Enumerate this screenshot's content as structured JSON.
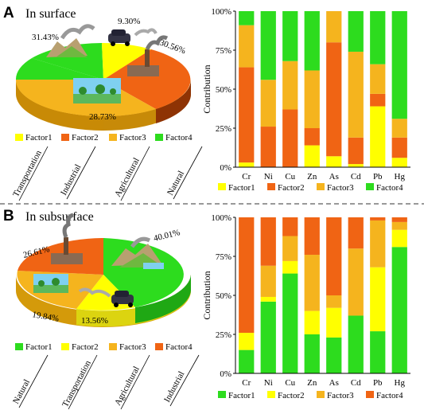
{
  "panels": [
    {
      "letter": "A",
      "title": "In surface",
      "pie": {
        "slices": [
          {
            "label": "9.30%",
            "value": 9.3,
            "factor": "Factor1"
          },
          {
            "label": "30.56%",
            "value": 30.56,
            "factor": "Factor2"
          },
          {
            "label": "28.73%",
            "value": 28.73,
            "factor": "Factor3"
          },
          {
            "label": "31.43%",
            "value": 31.43,
            "factor": "Factor4"
          }
        ],
        "legend": [
          "Factor1",
          "Factor2",
          "Factor3",
          "Factor4"
        ],
        "sources": [
          "Transportation",
          "Industrial",
          "Agricultural",
          "Natural"
        ]
      }
    },
    {
      "letter": "B",
      "title": "In subsurface",
      "pie": {
        "slices": [
          {
            "label": "40.01%",
            "value": 40.01,
            "factor": "Factor1"
          },
          {
            "label": "13.56%",
            "value": 13.56,
            "factor": "Factor2"
          },
          {
            "label": "19.84%",
            "value": 19.84,
            "factor": "Factor3"
          },
          {
            "label": "26.61%",
            "value": 26.61,
            "factor": "Factor4"
          }
        ],
        "legend": [
          "Factor1",
          "Factor2",
          "Factor3",
          "Factor4"
        ],
        "sources": [
          "Natural",
          "Transportation",
          "Agricultural",
          "Industrial"
        ]
      }
    }
  ],
  "colors": {
    "Factor1": "#ffff00",
    "Factor2": "#f06414",
    "Factor3": "#f5b41e",
    "Factor4": "#2ddc1e"
  },
  "chart_data": [
    {
      "type": "bar",
      "stacked": true,
      "ylabel": "Contribution",
      "ylim": [
        0,
        100
      ],
      "yticks": [
        "0%",
        "25%",
        "50%",
        "75%",
        "100%"
      ],
      "categories": [
        "Cr",
        "Ni",
        "Cu",
        "Zn",
        "As",
        "Cd",
        "Pb",
        "Hg"
      ],
      "series": [
        {
          "name": "Factor1",
          "color_key": "Factor1",
          "values": [
            3,
            0,
            0,
            14,
            7,
            2,
            39,
            6
          ]
        },
        {
          "name": "Factor2",
          "color_key": "Factor2",
          "values": [
            61,
            26,
            37,
            11,
            73,
            17,
            8,
            13
          ]
        },
        {
          "name": "Factor3",
          "color_key": "Factor3",
          "values": [
            27,
            30,
            31,
            37,
            20,
            55,
            19,
            12
          ]
        },
        {
          "name": "Factor4",
          "color_key": "Factor4",
          "values": [
            9,
            44,
            32,
            38,
            0,
            26,
            34,
            69
          ]
        }
      ],
      "legend_position": "bottom"
    },
    {
      "type": "bar",
      "stacked": true,
      "ylabel": "Contribution",
      "ylim": [
        0,
        100
      ],
      "yticks": [
        "0%",
        "25%",
        "50%",
        "75%",
        "100%"
      ],
      "categories": [
        "Cr",
        "Ni",
        "Cu",
        "Zn",
        "As",
        "Cd",
        "Pb",
        "Hg"
      ],
      "series": [
        {
          "name": "Factor1",
          "color_key": "Factor4",
          "values": [
            15,
            46,
            64,
            25,
            23,
            37,
            27,
            81
          ]
        },
        {
          "name": "Factor2",
          "color_key": "Factor1",
          "values": [
            11,
            3,
            8,
            15,
            19,
            0,
            41,
            11
          ]
        },
        {
          "name": "Factor3",
          "color_key": "Factor3",
          "values": [
            0,
            20,
            16,
            36,
            8,
            43,
            30,
            5
          ]
        },
        {
          "name": "Factor4",
          "color_key": "Factor2",
          "values": [
            74,
            31,
            12,
            24,
            50,
            20,
            2,
            3
          ]
        }
      ],
      "legend_position": "bottom"
    }
  ]
}
